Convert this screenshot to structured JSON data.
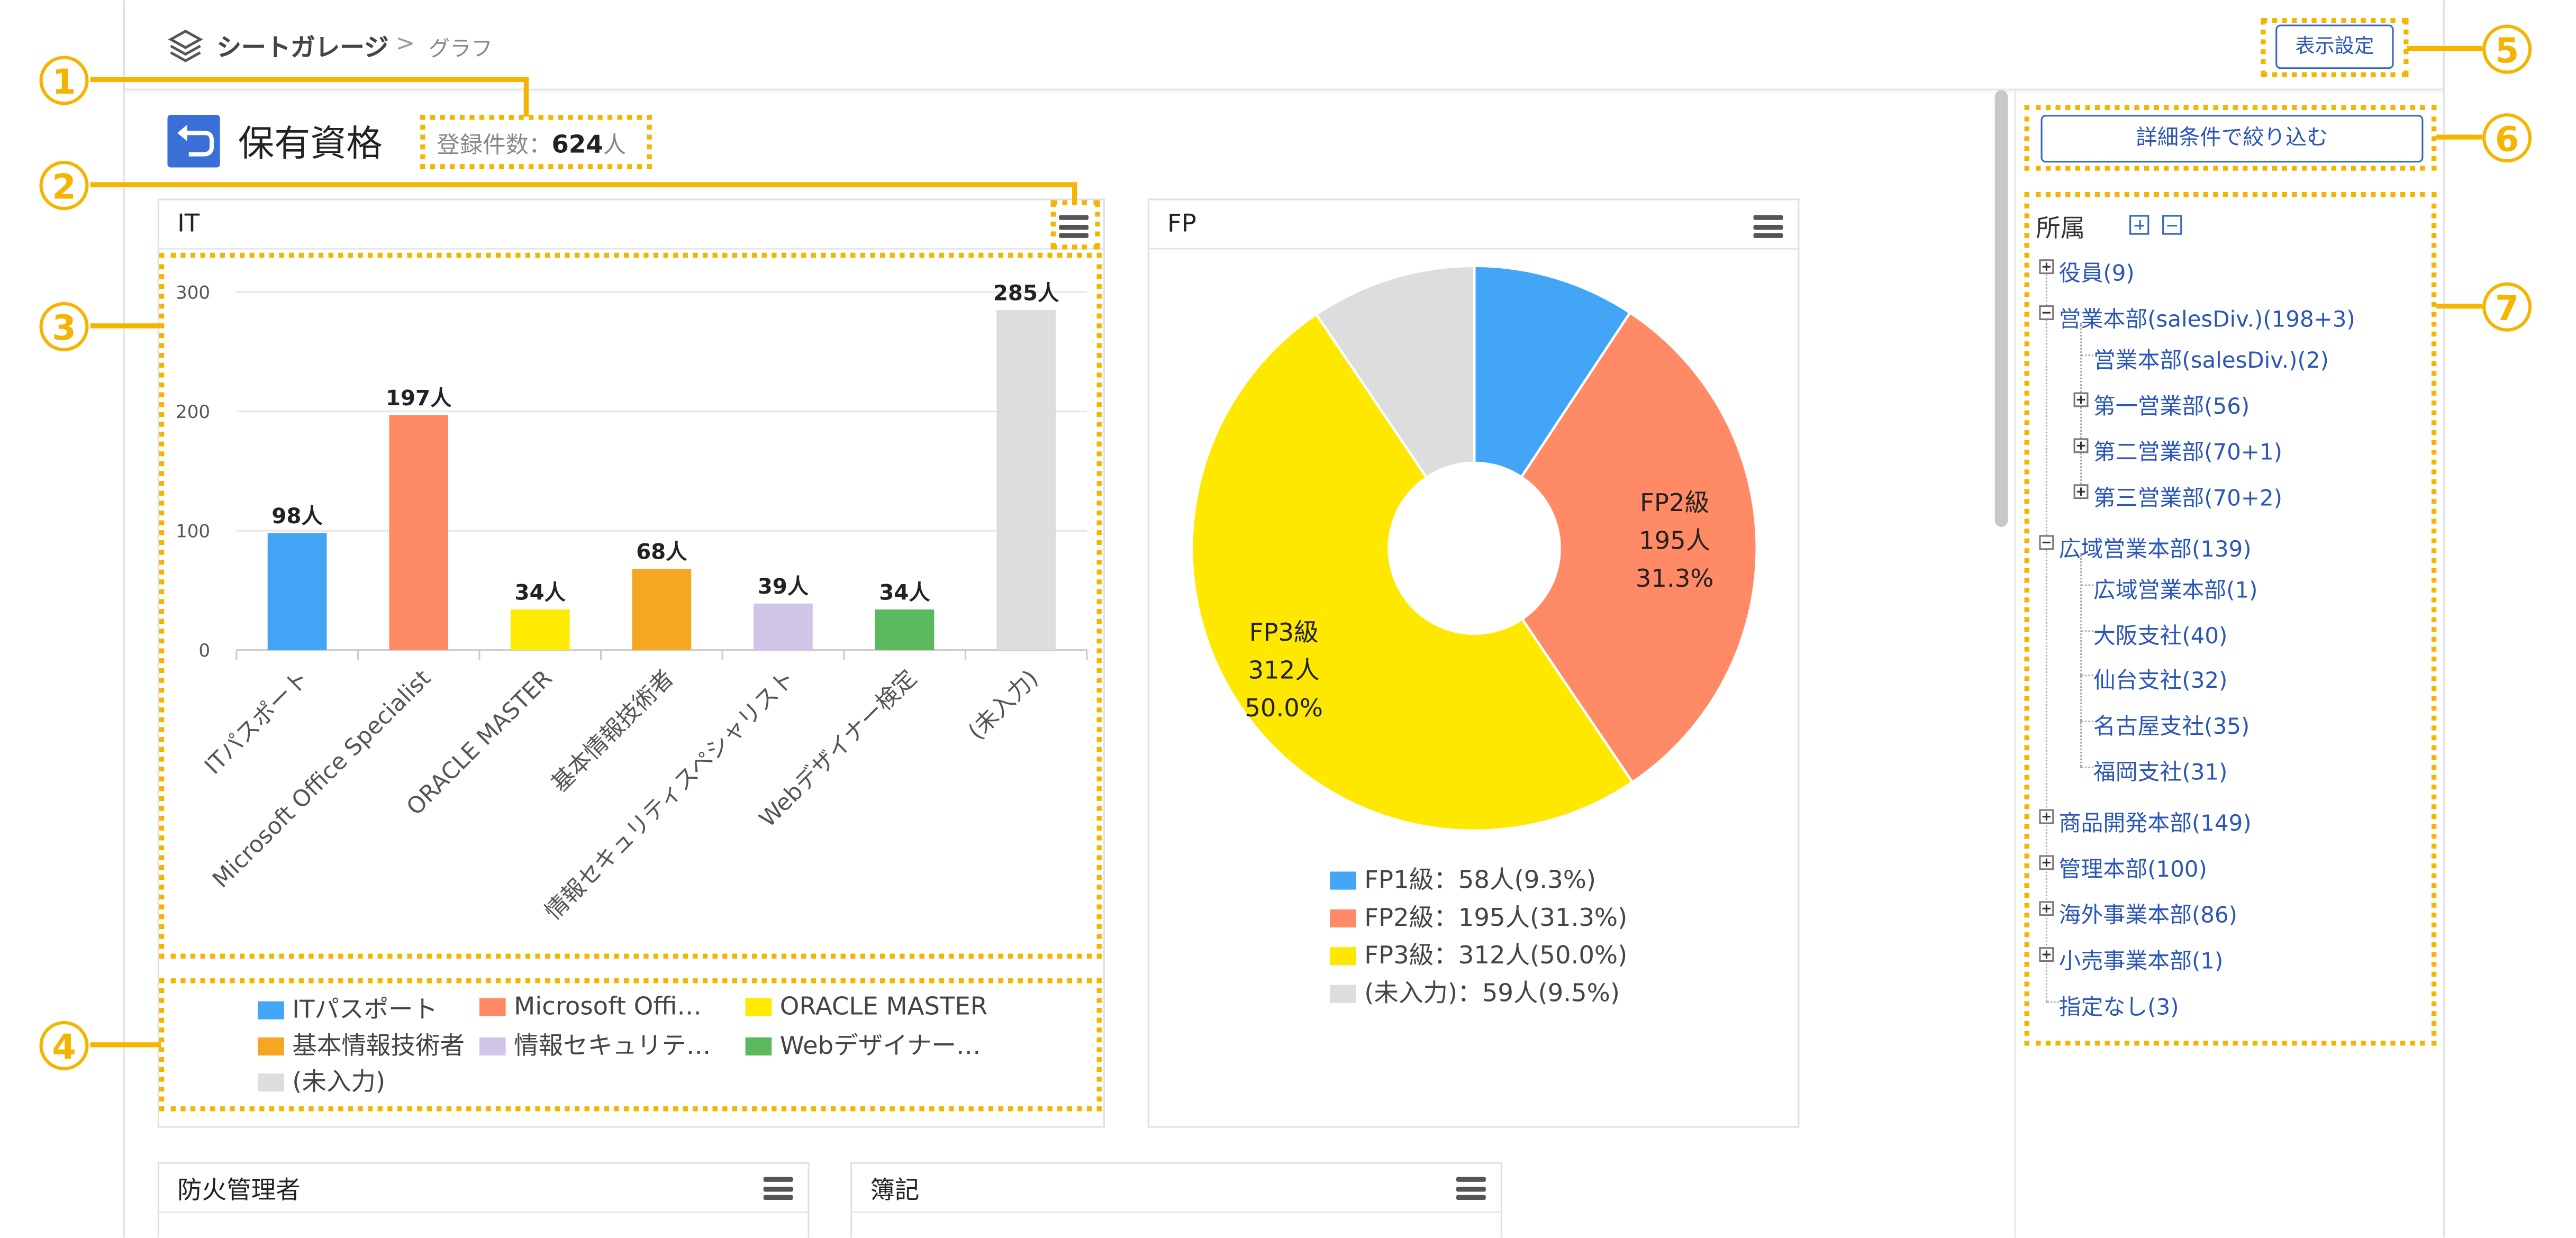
{
  "breadcrumb": {
    "app": "シートガレージ",
    "sep": ">",
    "current": "グラフ"
  },
  "header": {
    "display_settings": "表示設定"
  },
  "title": {
    "text": "保有資格",
    "count_label": "登録件数：",
    "count": "624",
    "count_unit": "人"
  },
  "filter": {
    "label": "詳細条件で絞り込む"
  },
  "it_chart": {
    "title": "IT",
    "chart_data": {
      "type": "bar",
      "categories": [
        "ITパスポート",
        "Microsoft Office Specialist",
        "ORACLE MASTER",
        "基本情報技術者",
        "情報セキュリティスペシャリスト",
        "Webデザイナー検定",
        "(未入力)"
      ],
      "values": [
        98,
        197,
        34,
        68,
        39,
        34,
        285
      ],
      "value_labels": [
        "98人",
        "197人",
        "34人",
        "68人",
        "39人",
        "34人",
        "285人"
      ],
      "colors": [
        "#42a5f5",
        "#ff8a65",
        "#ffeb00",
        "#f5a623",
        "#d1c4e9",
        "#5cb85c",
        "#dddddd"
      ],
      "yticks": [
        "0",
        "100",
        "200",
        "300"
      ],
      "ylim": [
        0,
        300
      ],
      "legend": [
        "ITパスポート",
        "Microsoft Offi…",
        "ORACLE MASTER",
        "基本情報技術者",
        "情報セキュリテ…",
        "Webデザイナー…",
        "(未入力)"
      ]
    }
  },
  "fp_chart": {
    "title": "FP",
    "chart_data": {
      "type": "pie",
      "labels": [
        "FP1級",
        "FP2級",
        "FP3級",
        "(未入力)"
      ],
      "values": [
        58,
        195,
        312,
        59
      ],
      "percents": [
        "9.3%",
        "31.3%",
        "50.0%",
        "9.5%"
      ],
      "colors": [
        "#42a5f5",
        "#ff8a65",
        "#ffe800",
        "#dddddd"
      ],
      "slice_labels": [
        {
          "name": "",
          "count": "",
          "pct": ""
        },
        {
          "name": "FP2級",
          "count": "195人",
          "pct": "31.3%"
        },
        {
          "name": "FP3級",
          "count": "312人",
          "pct": "50.0%"
        },
        {
          "name": "",
          "count": "",
          "pct": ""
        }
      ],
      "legend": [
        "FP1級：58人(9.3%)",
        "FP2級：195人(31.3%)",
        "FP3級：312人(50.0%)",
        "(未入力)：59人(9.5%)"
      ]
    }
  },
  "panels_bottom": [
    "防火管理者",
    "簿記"
  ],
  "sidebar": {
    "heading": "所属",
    "tree": [
      "役員(9)",
      "営業本部(salesDiv.)(198+3)",
      "営業本部(salesDiv.)(2)",
      "第一営業部(56)",
      "第二営業部(70+1)",
      "第三営業部(70+2)",
      "広域営業本部(139)",
      "広域営業本部(1)",
      "大阪支社(40)",
      "仙台支社(32)",
      "名古屋支社(35)",
      "福岡支社(31)",
      "商品開発本部(149)",
      "管理本部(100)",
      "海外事業本部(86)",
      "小売事業本部(1)",
      "指定なし(3)"
    ]
  },
  "annotations": [
    "1",
    "2",
    "3",
    "4",
    "5",
    "6",
    "7"
  ],
  "theme": {
    "annotation": "#f5b400",
    "accent": "#3366cc"
  }
}
